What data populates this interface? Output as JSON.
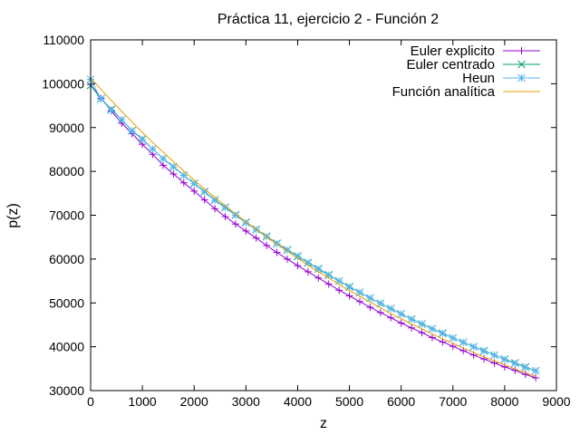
{
  "chart_data": {
    "type": "line",
    "title": "Práctica 11, ejercicio 2 - Función 2",
    "xlabel": "z",
    "ylabel": "p(z)",
    "xlim": [
      0,
      9000
    ],
    "ylim": [
      30000,
      110000
    ],
    "xticks": [
      0,
      1000,
      2000,
      3000,
      4000,
      5000,
      6000,
      7000,
      8000,
      9000
    ],
    "yticks": [
      30000,
      40000,
      50000,
      60000,
      70000,
      80000,
      90000,
      100000,
      110000
    ],
    "grid": false,
    "legend_position": "top-right",
    "series": [
      {
        "name": "Euler explicito",
        "color": "#9400d3",
        "marker": "plus",
        "x": [
          0,
          200,
          400,
          600,
          800,
          1000,
          1200,
          1400,
          1600,
          1800,
          2000,
          2200,
          2400,
          2600,
          2800,
          3000,
          3200,
          3400,
          3600,
          3800,
          4000,
          4200,
          4400,
          4600,
          4800,
          5000,
          5200,
          5400,
          5600,
          5800,
          6000,
          6200,
          6400,
          6600,
          6800,
          7000,
          7200,
          7400,
          7600,
          7800,
          8000,
          8200,
          8400,
          8600
        ],
        "values": [
          99800,
          96700,
          93800,
          91000,
          88600,
          86200,
          83900,
          81400,
          79400,
          77400,
          75500,
          73500,
          71500,
          69700,
          68000,
          66400,
          64800,
          63100,
          61500,
          60000,
          58500,
          57100,
          55700,
          54300,
          52900,
          51600,
          50300,
          49000,
          47800,
          46600,
          45400,
          44300,
          43200,
          42100,
          41100,
          40100,
          39100,
          38100,
          37200,
          36300,
          35400,
          34600,
          33700,
          32900
        ]
      },
      {
        "name": "Euler centrado",
        "color": "#009e73",
        "marker": "cross",
        "x": [
          0,
          200,
          400,
          600,
          800,
          1000,
          1200,
          1400,
          1600,
          1800,
          2000,
          2200,
          2400,
          2600,
          2800,
          3000,
          3200,
          3400,
          3600,
          3800,
          4000,
          4200,
          4400,
          4600,
          4800,
          5000,
          5200,
          5400,
          5600,
          5800,
          6000,
          6200,
          6400,
          6600,
          6800,
          7000,
          7200,
          7400,
          7600,
          7800,
          8000,
          8200,
          8400,
          8600
        ],
        "values": [
          99600,
          96600,
          94200,
          91800,
          89300,
          87400,
          85100,
          82900,
          81100,
          79100,
          77300,
          75400,
          73500,
          71800,
          70100,
          68400,
          66800,
          65200,
          63600,
          62100,
          60700,
          59200,
          57800,
          56400,
          55000,
          53700,
          52400,
          51100,
          49900,
          48700,
          47500,
          46300,
          45200,
          44100,
          43100,
          42000,
          41000,
          40000,
          39100,
          38100,
          37200,
          36300,
          35400,
          34500
        ]
      },
      {
        "name": "Heun",
        "color": "#56b4e9",
        "marker": "star",
        "x": [
          0,
          200,
          400,
          600,
          800,
          1000,
          1200,
          1400,
          1600,
          1800,
          2000,
          2200,
          2400,
          2600,
          2800,
          3000,
          3200,
          3400,
          3600,
          3800,
          4000,
          4200,
          4400,
          4600,
          4800,
          5000,
          5200,
          5400,
          5600,
          5800,
          6000,
          6200,
          6400,
          6600,
          6800,
          7000,
          7200,
          7400,
          7600,
          7800,
          8000,
          8200,
          8400,
          8600
        ],
        "values": [
          101000,
          96500,
          94000,
          91800,
          89200,
          87300,
          85100,
          82900,
          81000,
          79100,
          77200,
          75300,
          73400,
          71700,
          70000,
          68300,
          66700,
          65100,
          63500,
          62000,
          60600,
          59100,
          57700,
          56300,
          55000,
          53600,
          52400,
          51100,
          49900,
          48700,
          47500,
          46300,
          45200,
          44100,
          43000,
          42000,
          41000,
          40000,
          39000,
          38100,
          37100,
          36200,
          35300,
          34500
        ]
      },
      {
        "name": "Función analítica",
        "color": "#e69f00",
        "marker": "none",
        "x": [
          0,
          200,
          400,
          600,
          800,
          1000,
          1200,
          1400,
          1600,
          1800,
          2000,
          2200,
          2400,
          2600,
          2800,
          3000,
          3200,
          3400,
          3600,
          3800,
          4000,
          4200,
          4400,
          4600,
          4800,
          5000,
          5200,
          5400,
          5600,
          5800,
          6000,
          6200,
          6400,
          6600,
          6800,
          7000,
          7200,
          7400,
          7600,
          7800,
          8000,
          8200,
          8400,
          8600
        ],
        "values": [
          101300,
          98700,
          96200,
          93700,
          91300,
          88900,
          86600,
          84400,
          82200,
          80100,
          78000,
          76000,
          74100,
          72200,
          70300,
          68500,
          66800,
          65000,
          63400,
          61800,
          60200,
          58600,
          57100,
          55700,
          54200,
          52800,
          51500,
          50200,
          48900,
          47600,
          46400,
          45200,
          44100,
          42900,
          41800,
          40800,
          39700,
          38700,
          37700,
          36800,
          35900,
          34900,
          34100,
          33200
        ]
      }
    ]
  }
}
